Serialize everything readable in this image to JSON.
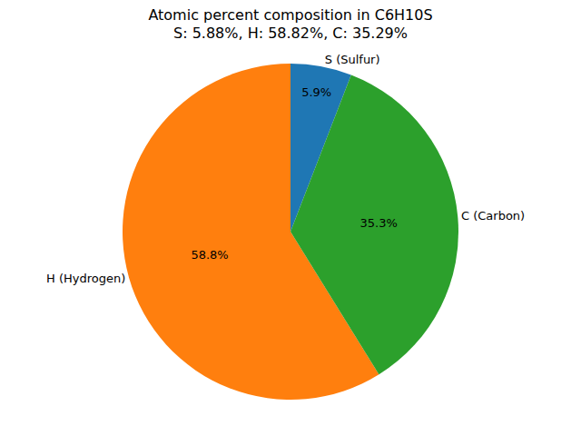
{
  "chart_data": {
    "type": "pie",
    "title": "Atomic percent composition in C6H10S",
    "subtitle": "S: 5.88%, H: 58.82%, C: 35.29%",
    "categories": [
      "S (Sulfur)",
      "H (Hydrogen)",
      "C (Carbon)"
    ],
    "values": [
      5.88,
      58.82,
      35.29
    ],
    "value_labels": [
      "5.9%",
      "58.8%",
      "35.3%"
    ],
    "colors": [
      "#1f77b4",
      "#ff7f0e",
      "#2ca02c"
    ],
    "data_labels": true,
    "legend": false
  }
}
